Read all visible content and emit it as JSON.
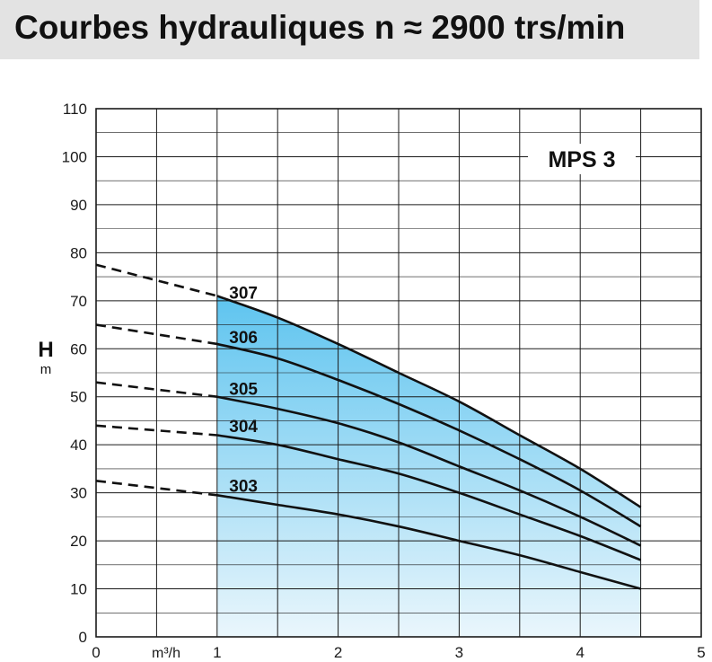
{
  "header": {
    "title": "Courbes hydrauliques n ≈ 2900 trs/min"
  },
  "colors": {
    "fill_top": "#5ec4ef",
    "fill_bottom": "#eaf6fc",
    "grid": "#1a1a1a",
    "curve": "#111111",
    "title_band": "#e3e3e3"
  },
  "chart_data": {
    "type": "line",
    "title": "",
    "model_label": "MPS 3",
    "ylabel": "H",
    "yunit": "m",
    "xunit": "m³/h",
    "xlim": [
      0,
      5
    ],
    "ylim": [
      0,
      110
    ],
    "x_ticks": [
      "0",
      "1",
      "2",
      "3",
      "4",
      "5"
    ],
    "y_ticks": [
      "0",
      "10",
      "20",
      "30",
      "40",
      "50",
      "60",
      "70",
      "80",
      "90",
      "100",
      "110"
    ],
    "grid": true,
    "shaded_range": [
      1,
      4.5
    ],
    "series": [
      {
        "name": "307",
        "dashed": [
          [
            0,
            77.5
          ],
          [
            1,
            71
          ]
        ],
        "solid": [
          [
            1,
            71
          ],
          [
            1.5,
            66.5
          ],
          [
            2,
            61
          ],
          [
            2.5,
            55
          ],
          [
            3,
            49
          ],
          [
            3.5,
            42
          ],
          [
            4,
            35
          ],
          [
            4.5,
            27
          ]
        ]
      },
      {
        "name": "306",
        "dashed": [
          [
            0,
            65
          ],
          [
            1,
            61
          ]
        ],
        "solid": [
          [
            1,
            61
          ],
          [
            1.5,
            58
          ],
          [
            2,
            53.5
          ],
          [
            2.5,
            48.5
          ],
          [
            3,
            43
          ],
          [
            3.5,
            37
          ],
          [
            4,
            30.5
          ],
          [
            4.5,
            23
          ]
        ]
      },
      {
        "name": "305",
        "dashed": [
          [
            0,
            53
          ],
          [
            1,
            50
          ]
        ],
        "solid": [
          [
            1,
            50
          ],
          [
            1.5,
            47.5
          ],
          [
            2,
            44.5
          ],
          [
            2.5,
            40.5
          ],
          [
            3,
            35.5
          ],
          [
            3.5,
            30.5
          ],
          [
            4,
            25
          ],
          [
            4.5,
            19
          ]
        ]
      },
      {
        "name": "304",
        "dashed": [
          [
            0,
            44
          ],
          [
            1,
            42
          ]
        ],
        "solid": [
          [
            1,
            42
          ],
          [
            1.5,
            40
          ],
          [
            2,
            37
          ],
          [
            2.5,
            34
          ],
          [
            3,
            30
          ],
          [
            3.5,
            25.5
          ],
          [
            4,
            21
          ],
          [
            4.5,
            16
          ]
        ]
      },
      {
        "name": "303",
        "dashed": [
          [
            0,
            32.5
          ],
          [
            1,
            29.5
          ]
        ],
        "solid": [
          [
            1,
            29.5
          ],
          [
            1.5,
            27.5
          ],
          [
            2,
            25.5
          ],
          [
            2.5,
            23
          ],
          [
            3,
            20
          ],
          [
            3.5,
            17
          ],
          [
            4,
            13.5
          ],
          [
            4.5,
            10
          ]
        ]
      }
    ]
  }
}
